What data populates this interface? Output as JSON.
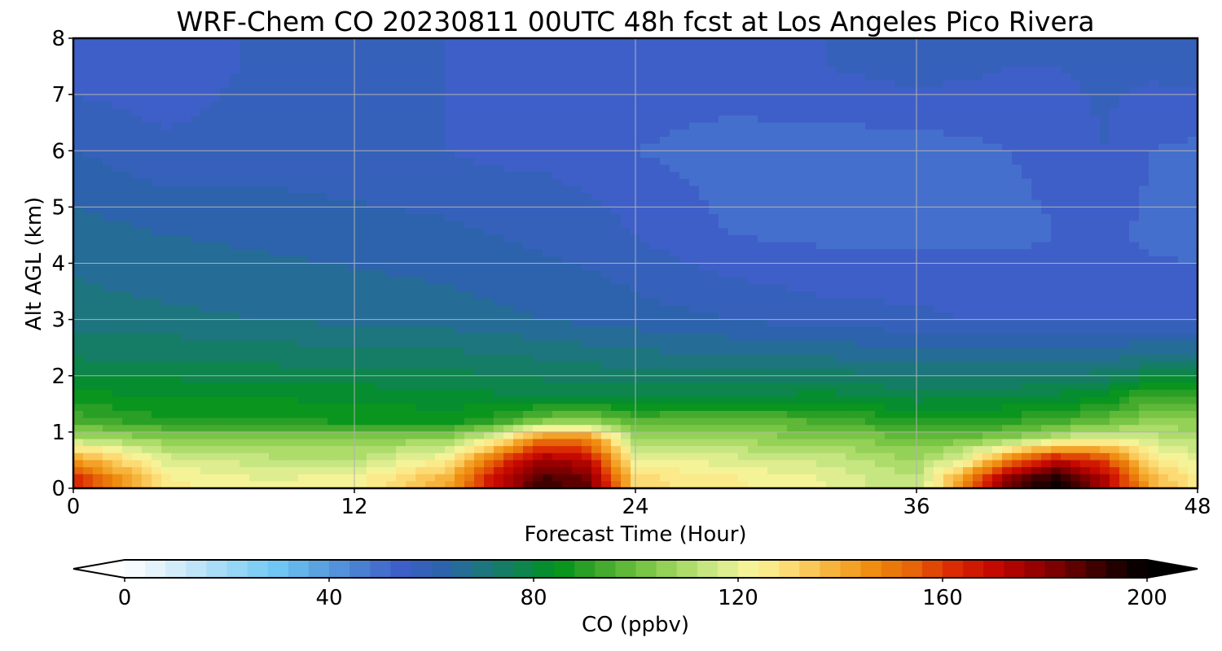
{
  "chart_data": {
    "type": "heatmap",
    "title": "WRF-Chem CO  20230811 00UTC 48h fcst at Los Angeles Pico Rivera",
    "xlabel": "Forecast Time (Hour)",
    "ylabel": "Alt AGL (km)",
    "xlim": [
      0,
      48
    ],
    "ylim": [
      0,
      8
    ],
    "xticks": [
      0,
      12,
      24,
      36,
      48
    ],
    "yticks": [
      0,
      1,
      2,
      3,
      4,
      5,
      6,
      7,
      8
    ],
    "grid": true,
    "colorbar": {
      "label": "CO  (ppbv)",
      "min": 0,
      "max": 200,
      "ticks": [
        0,
        40,
        80,
        120,
        160,
        200
      ],
      "extend": "both",
      "levels": 50,
      "colors": [
        "#ffffff",
        "#def0fa",
        "#b7e1f6",
        "#8fd3f5",
        "#6bc5f2",
        "#5aa0e0",
        "#4a7fd2",
        "#3f5fc8",
        "#2e62b0",
        "#1f7383",
        "#0f8355",
        "#00921b",
        "#3aa52a",
        "#6cbf3c",
        "#9fd65e",
        "#cfe98a",
        "#fbf59a",
        "#fcd870",
        "#f7b23a",
        "#ef8c10",
        "#e56608",
        "#dc2d02",
        "#c80a00",
        "#9e0000",
        "#6a0000",
        "#2c0000",
        "#000000"
      ]
    },
    "x": [
      0,
      4,
      8,
      12,
      16,
      18,
      20,
      22,
      24,
      28,
      32,
      36,
      38,
      40,
      42,
      44,
      46,
      48
    ],
    "y": [
      0.15,
      0.5,
      0.9,
      1.2,
      1.6,
      2.2,
      3.0,
      4.5,
      6.0,
      7.5
    ],
    "z": [
      [
        165,
        125,
        120,
        122,
        140,
        170,
        190,
        185,
        130,
        125,
        120,
        112,
        145,
        185,
        198,
        175,
        140,
        125
      ],
      [
        145,
        118,
        114,
        112,
        125,
        155,
        178,
        170,
        122,
        118,
        115,
        108,
        120,
        150,
        170,
        160,
        128,
        120
      ],
      [
        110,
        104,
        102,
        104,
        106,
        120,
        148,
        146,
        108,
        106,
        104,
        100,
        100,
        104,
        112,
        118,
        114,
        110
      ],
      [
        95,
        88,
        88,
        87,
        86,
        90,
        102,
        104,
        96,
        98,
        95,
        88,
        89,
        90,
        94,
        98,
        106,
        104
      ],
      [
        86,
        84,
        84,
        83,
        82,
        81,
        80,
        80,
        80,
        81,
        82,
        79,
        80,
        80,
        82,
        84,
        95,
        93
      ],
      [
        77,
        77,
        76,
        75,
        75,
        74,
        73,
        72,
        71,
        70,
        70,
        68,
        68,
        68,
        68,
        69,
        72,
        72
      ],
      [
        70,
        69,
        68,
        67,
        66,
        65,
        64,
        63,
        62,
        60,
        58,
        57,
        56,
        56,
        56,
        56,
        56,
        56
      ],
      [
        66,
        64,
        63,
        62,
        61,
        60,
        59,
        58,
        56,
        52,
        51,
        51,
        51,
        51,
        52,
        53,
        51,
        50
      ],
      [
        60,
        57,
        58,
        57,
        56,
        55,
        55,
        54,
        52,
        50,
        50,
        50,
        51,
        52,
        53,
        56,
        52,
        51
      ],
      [
        54,
        53,
        57,
        57,
        56,
        55,
        54,
        54,
        55,
        55,
        56,
        58,
        57,
        56,
        56,
        57,
        57,
        58
      ]
    ]
  }
}
